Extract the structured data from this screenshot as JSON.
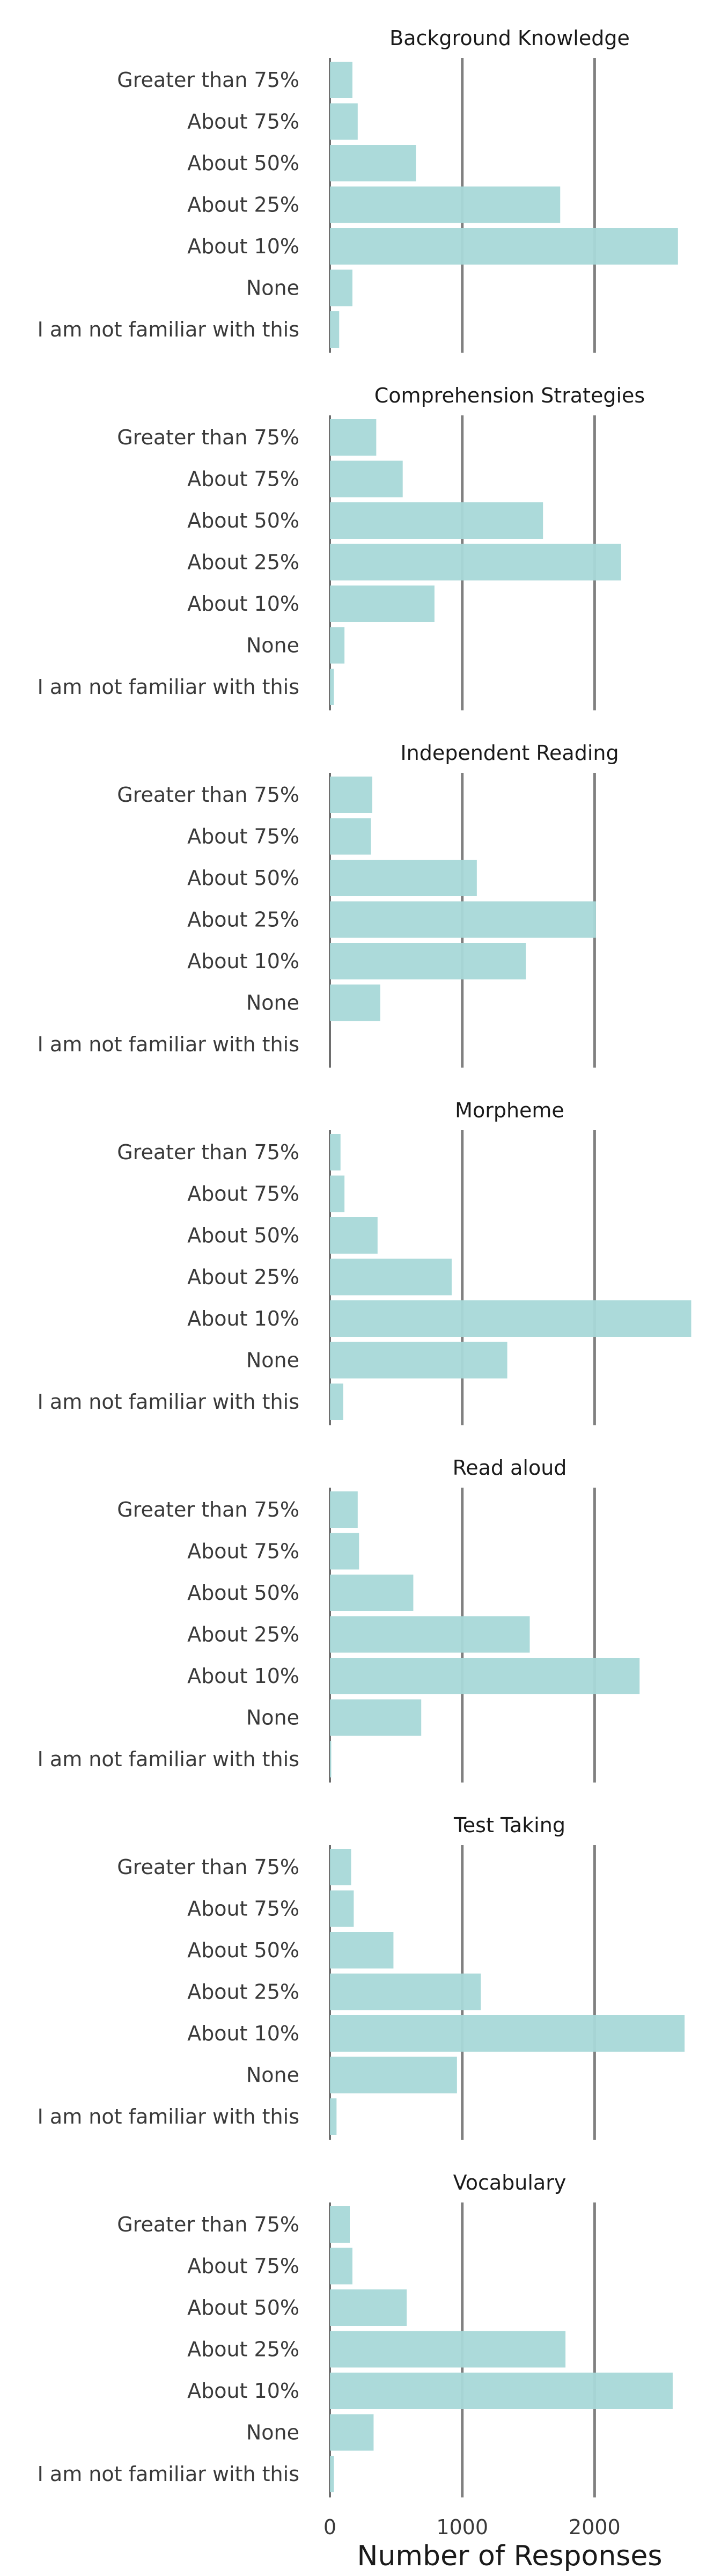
{
  "chart_data": {
    "type": "bar",
    "orientation": "horizontal",
    "xlabel": "Number of Responses",
    "xlim": [
      0,
      2720
    ],
    "xticks": [
      0,
      1000,
      2000
    ],
    "xtick_labels": [
      "0",
      "1000",
      "2000"
    ],
    "grid": "vertical lines at 1000 and 2000",
    "bar_color": "#a8d8d8",
    "grid_color": "#808080",
    "categories": [
      "Greater than 75%",
      "About 75%",
      "About 50%",
      "About 25%",
      "About 10%",
      "None",
      "I am not familiar with this"
    ],
    "panels": [
      {
        "title": "Background Knowledge",
        "values": [
          170,
          210,
          650,
          1740,
          2630,
          170,
          70
        ]
      },
      {
        "title": "Comprehension Strategies",
        "values": [
          350,
          550,
          1610,
          2200,
          790,
          110,
          30
        ]
      },
      {
        "title": "Independent Reading",
        "values": [
          320,
          310,
          1110,
          2010,
          1480,
          380,
          0
        ]
      },
      {
        "title": "Morpheme",
        "values": [
          80,
          110,
          360,
          920,
          2730,
          1340,
          100
        ]
      },
      {
        "title": "Read aloud",
        "values": [
          210,
          220,
          630,
          1510,
          2340,
          690,
          10
        ]
      },
      {
        "title": "Test Taking",
        "values": [
          160,
          180,
          480,
          1140,
          2680,
          960,
          50
        ]
      },
      {
        "title": "Vocabulary",
        "values": [
          150,
          170,
          580,
          1780,
          2590,
          330,
          30
        ]
      }
    ]
  }
}
